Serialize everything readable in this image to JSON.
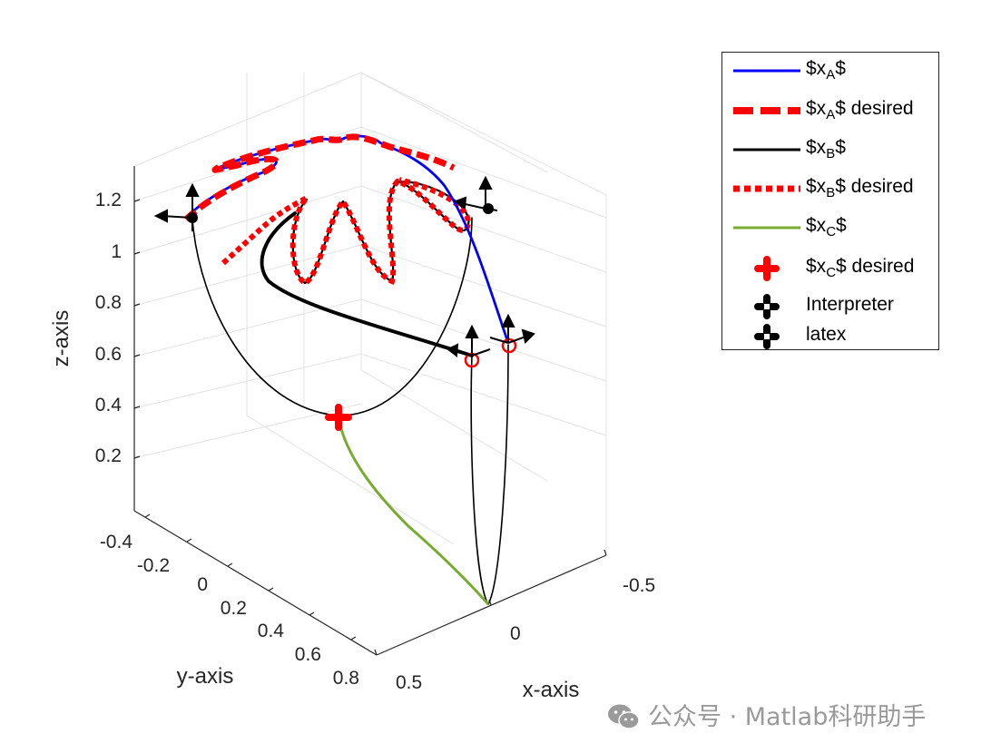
{
  "chart_data": {
    "type": "line3d",
    "xlabel": "x-axis",
    "ylabel": "y-axis",
    "zlabel": "z-axis",
    "x_ticks": [
      "-0.5",
      "0",
      "0.5"
    ],
    "y_ticks": [
      "-0.4",
      "-0.2",
      "0",
      "0.2",
      "0.4",
      "0.6",
      "0.8"
    ],
    "z_ticks": [
      "0.2",
      "0.4",
      "0.6",
      "0.8",
      "1",
      "1.2"
    ],
    "grid": true,
    "legend_position": "outside-top-right",
    "legend": [
      {
        "key": "xa",
        "pre": "$x",
        "sub": "A",
        "post": "$",
        "style": "solid",
        "color": "#0000ff"
      },
      {
        "key": "xa_d",
        "pre": "$x",
        "sub": "A",
        "post": "$ desired",
        "style": "dashed",
        "color": "#ff0000"
      },
      {
        "key": "xb",
        "pre": "$x",
        "sub": "B",
        "post": "$",
        "style": "solid",
        "color": "#000000"
      },
      {
        "key": "xb_d",
        "pre": "$x",
        "sub": "B",
        "post": "$ desired",
        "style": "dotted",
        "color": "#ff0000"
      },
      {
        "key": "xc",
        "pre": "$x",
        "sub": "C",
        "post": "$",
        "style": "solid",
        "color": "#77ac30"
      },
      {
        "key": "xc_d",
        "pre": "$x",
        "sub": "C",
        "post": "$ desired",
        "style": "marker",
        "color": "#ff0000"
      },
      {
        "key": "interp",
        "pre": "Interpreter",
        "sub": "",
        "post": "",
        "style": "marker",
        "color": "#000000"
      },
      {
        "key": "latex",
        "pre": "latex",
        "sub": "",
        "post": "",
        "style": "marker",
        "color": "#000000"
      }
    ]
  },
  "watermark": {
    "text": "公众号 · Matlab科研助手",
    "icon": "wechat-icon"
  }
}
